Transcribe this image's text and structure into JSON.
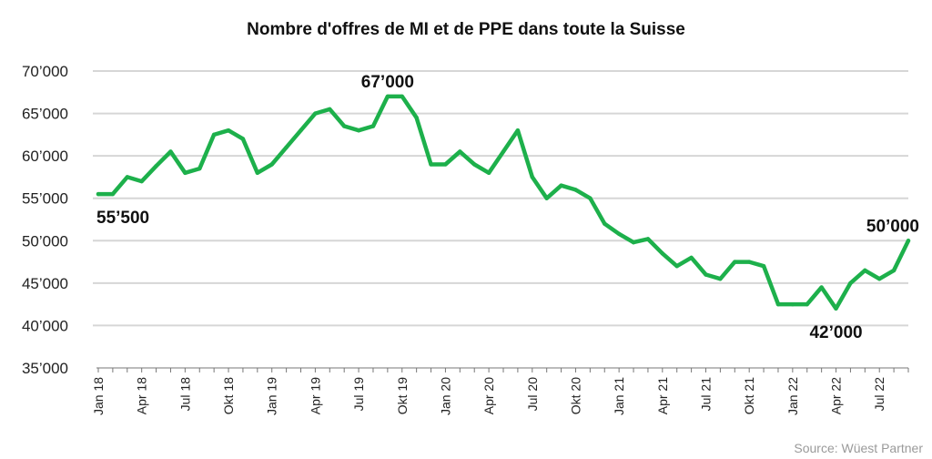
{
  "title": "Nombre d'offres de MI et de PPE dans toute la Suisse",
  "source": "Source: Wüest Partner",
  "colors": {
    "line": "#1db04b",
    "grid": "#d6d6d6",
    "axis": "#777777"
  },
  "chart_data": {
    "type": "line",
    "title": "Nombre d'offres de MI et de PPE dans toute la Suisse",
    "xlabel": "",
    "ylabel": "",
    "ylim": [
      35000,
      70000
    ],
    "yticks": [
      35000,
      40000,
      45000,
      50000,
      55000,
      60000,
      65000,
      70000
    ],
    "ytick_labels": [
      "35’000",
      "40’000",
      "45’000",
      "50’000",
      "55’000",
      "60’000",
      "65’000",
      "70’000"
    ],
    "grid": true,
    "x": [
      "2018-01",
      "2018-02",
      "2018-03",
      "2018-04",
      "2018-05",
      "2018-06",
      "2018-07",
      "2018-08",
      "2018-09",
      "2018-10",
      "2018-11",
      "2018-12",
      "2019-01",
      "2019-02",
      "2019-03",
      "2019-04",
      "2019-05",
      "2019-06",
      "2019-07",
      "2019-08",
      "2019-09",
      "2019-10",
      "2019-11",
      "2019-12",
      "2020-01",
      "2020-02",
      "2020-03",
      "2020-04",
      "2020-05",
      "2020-06",
      "2020-07",
      "2020-08",
      "2020-09",
      "2020-10",
      "2020-11",
      "2020-12",
      "2021-01",
      "2021-02",
      "2021-03",
      "2021-04",
      "2021-05",
      "2021-06",
      "2021-07",
      "2021-08",
      "2021-09",
      "2021-10",
      "2021-11",
      "2021-12",
      "2022-01",
      "2022-02",
      "2022-03",
      "2022-04",
      "2022-05",
      "2022-06",
      "2022-07",
      "2022-08",
      "2022-09"
    ],
    "values": [
      55500,
      55500,
      57500,
      57000,
      58800,
      60500,
      58000,
      58500,
      62500,
      63000,
      62000,
      58000,
      59000,
      61000,
      63000,
      65000,
      65500,
      63500,
      63000,
      63500,
      67000,
      67000,
      64500,
      59000,
      59000,
      60500,
      59000,
      58000,
      60500,
      63000,
      57500,
      55000,
      56500,
      56000,
      55000,
      52000,
      50800,
      49800,
      50200,
      48500,
      47000,
      48000,
      46000,
      45500,
      47500,
      47500,
      47000,
      42500,
      42500,
      42500,
      44500,
      42000,
      45000,
      46500,
      45500,
      46500,
      50000
    ],
    "xtick_labels": [
      {
        "index": 0,
        "label": "Jan 18"
      },
      {
        "index": 3,
        "label": "Apr 18"
      },
      {
        "index": 6,
        "label": "Jul 18"
      },
      {
        "index": 9,
        "label": "Okt 18"
      },
      {
        "index": 12,
        "label": "Jan 19"
      },
      {
        "index": 15,
        "label": "Apr 19"
      },
      {
        "index": 18,
        "label": "Jul 19"
      },
      {
        "index": 21,
        "label": "Okt 19"
      },
      {
        "index": 24,
        "label": "Jan 20"
      },
      {
        "index": 27,
        "label": "Apr 20"
      },
      {
        "index": 30,
        "label": "Jul 20"
      },
      {
        "index": 33,
        "label": "Okt 20"
      },
      {
        "index": 36,
        "label": "Jan 21"
      },
      {
        "index": 39,
        "label": "Apr 21"
      },
      {
        "index": 42,
        "label": "Jul 21"
      },
      {
        "index": 45,
        "label": "Okt 21"
      },
      {
        "index": 48,
        "label": "Jan 22"
      },
      {
        "index": 51,
        "label": "Apr 22"
      },
      {
        "index": 54,
        "label": "Jul 22"
      }
    ],
    "annotations": [
      {
        "index": 0,
        "text": "55’500",
        "placement": "below"
      },
      {
        "index": 20,
        "text": "67’000",
        "placement": "above"
      },
      {
        "index": 51,
        "text": "42’000",
        "placement": "below"
      },
      {
        "index": 56,
        "text": "50’000",
        "placement": "above"
      }
    ]
  }
}
